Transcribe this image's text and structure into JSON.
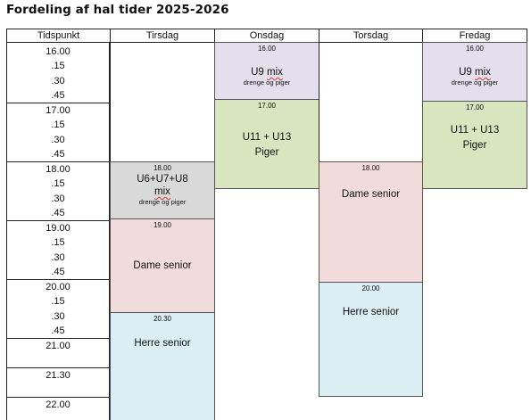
{
  "title": "Fordeling af hal tider 2025-2026",
  "headers": {
    "time": "Tidspunkt",
    "tue": "Tirsdag",
    "wed": "Onsdag",
    "thu": "Torsdag",
    "fri": "Fredag"
  },
  "times": [
    "16.00",
    ".15",
    ".30",
    ".45",
    "17.00",
    ".15",
    ".30",
    ".45",
    "18.00",
    ".15",
    ".30",
    ".45",
    "19.00",
    ".15",
    ".30",
    ".45",
    "20.00",
    ".15",
    ".30",
    ".45",
    "21.00",
    "21.30",
    "22.00"
  ],
  "blocks": {
    "tue_u6": {
      "start": "18.00",
      "name_line1": "U6+U7+U8",
      "name_line2": "mix",
      "sub": "drenge og piger"
    },
    "tue_dame": {
      "start": "19.00",
      "name": "Dame senior"
    },
    "tue_herre": {
      "start": "20.30",
      "name": "Herre senior"
    },
    "wed_u9": {
      "start": "16.00",
      "name_a": "U9",
      "name_b": "mix",
      "sub": "drenge og piger"
    },
    "wed_u11": {
      "start": "17.00",
      "name_line1": "U11 + U13",
      "name_line2": "Piger"
    },
    "thu_dame": {
      "start": "18.00",
      "name": "Dame senior"
    },
    "thu_herre": {
      "start": "20.00",
      "name": "Herre senior"
    },
    "fri_u9": {
      "start": "16.00",
      "name_a": "U9",
      "name_b": "mix",
      "sub": "drenge og piger"
    },
    "fri_u11": {
      "start": "17.00",
      "name_line1": "U11 + U13",
      "name_line2": "Piger"
    }
  }
}
